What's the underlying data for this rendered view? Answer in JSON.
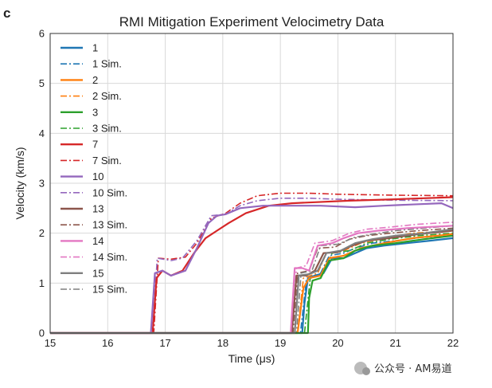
{
  "panel_label": "c",
  "watermark": "公众号 · AM易道",
  "colors": {
    "1": "#1f77b4",
    "2": "#ff7f0e",
    "3": "#2ca02c",
    "7": "#d62728",
    "10": "#9467bd",
    "13": "#8c564b",
    "14": "#e377c2",
    "15": "#7f7f7f",
    "grid": "#d9d9d9",
    "axis": "#333333"
  },
  "chart_data": {
    "type": "line",
    "title": "RMI Mitigation Experiment Velocimetry Data",
    "xlabel": "Time (μs)",
    "ylabel": "Velocity (km/s)",
    "xlim": [
      15,
      22
    ],
    "ylim": [
      0,
      6
    ],
    "xticks": [
      "15",
      "16",
      "17",
      "18",
      "19",
      "20",
      "21",
      "22"
    ],
    "yticks": [
      "0",
      "1",
      "2",
      "3",
      "4",
      "5",
      "6"
    ],
    "grid": true,
    "legend_position": "upper-left",
    "series": [
      {
        "name": "1",
        "key": "1",
        "style": "solid",
        "points": [
          [
            15,
            0
          ],
          [
            19.3,
            0
          ],
          [
            19.38,
            0
          ],
          [
            19.42,
            0.6
          ],
          [
            19.48,
            1.1
          ],
          [
            19.6,
            1.15
          ],
          [
            19.75,
            1.2
          ],
          [
            19.9,
            1.5
          ],
          [
            20.1,
            1.5
          ],
          [
            20.3,
            1.6
          ],
          [
            20.5,
            1.7
          ],
          [
            20.8,
            1.75
          ],
          [
            21.2,
            1.8
          ],
          [
            21.6,
            1.85
          ],
          [
            22,
            1.9
          ]
        ]
      },
      {
        "name": "1 Sim.",
        "key": "1",
        "style": "dashdot",
        "points": [
          [
            15,
            0
          ],
          [
            19.35,
            0
          ],
          [
            19.45,
            1.05
          ],
          [
            19.7,
            1.2
          ],
          [
            19.85,
            1.55
          ],
          [
            20.1,
            1.6
          ],
          [
            20.3,
            1.7
          ],
          [
            20.6,
            1.8
          ],
          [
            21,
            1.85
          ],
          [
            21.5,
            1.92
          ],
          [
            22,
            1.95
          ]
        ]
      },
      {
        "name": "2",
        "key": "2",
        "style": "solid",
        "points": [
          [
            15,
            0
          ],
          [
            19.15,
            0
          ],
          [
            19.3,
            0
          ],
          [
            19.4,
            0.9
          ],
          [
            19.5,
            1.1
          ],
          [
            19.7,
            1.15
          ],
          [
            19.85,
            1.5
          ],
          [
            20.1,
            1.55
          ],
          [
            20.4,
            1.7
          ],
          [
            20.8,
            1.8
          ],
          [
            21.3,
            1.9
          ],
          [
            22,
            1.98
          ]
        ]
      },
      {
        "name": "2 Sim.",
        "key": "2",
        "style": "dashdot",
        "points": [
          [
            15,
            0
          ],
          [
            19.3,
            0
          ],
          [
            19.4,
            1.1
          ],
          [
            19.65,
            1.2
          ],
          [
            19.8,
            1.6
          ],
          [
            20.1,
            1.65
          ],
          [
            20.4,
            1.8
          ],
          [
            20.8,
            1.9
          ],
          [
            21.3,
            2.0
          ],
          [
            22,
            2.05
          ]
        ]
      },
      {
        "name": "3",
        "key": "3",
        "style": "solid",
        "points": [
          [
            15,
            0
          ],
          [
            19.4,
            0
          ],
          [
            19.48,
            0
          ],
          [
            19.5,
            0.7
          ],
          [
            19.56,
            1.05
          ],
          [
            19.7,
            1.1
          ],
          [
            19.85,
            1.45
          ],
          [
            20.1,
            1.5
          ],
          [
            20.3,
            1.65
          ],
          [
            20.6,
            1.75
          ],
          [
            21,
            1.8
          ],
          [
            21.5,
            1.88
          ],
          [
            22,
            1.95
          ]
        ]
      },
      {
        "name": "3 Sim.",
        "key": "3",
        "style": "dashdot",
        "points": [
          [
            15,
            0
          ],
          [
            19.42,
            0
          ],
          [
            19.52,
            1.1
          ],
          [
            19.75,
            1.2
          ],
          [
            19.9,
            1.6
          ],
          [
            20.2,
            1.65
          ],
          [
            20.5,
            1.8
          ],
          [
            20.9,
            1.88
          ],
          [
            21.4,
            1.95
          ],
          [
            22,
            2.0
          ]
        ]
      },
      {
        "name": "7",
        "key": "7",
        "style": "solid",
        "points": [
          [
            15,
            0
          ],
          [
            16.78,
            0
          ],
          [
            16.85,
            1.1
          ],
          [
            16.95,
            1.25
          ],
          [
            17.1,
            1.15
          ],
          [
            17.3,
            1.25
          ],
          [
            17.5,
            1.6
          ],
          [
            17.7,
            1.9
          ],
          [
            17.9,
            2.05
          ],
          [
            18.1,
            2.2
          ],
          [
            18.4,
            2.4
          ],
          [
            18.8,
            2.55
          ],
          [
            19.2,
            2.6
          ],
          [
            19.6,
            2.62
          ],
          [
            20.2,
            2.65
          ],
          [
            21,
            2.68
          ],
          [
            22,
            2.72
          ]
        ]
      },
      {
        "name": "7 Sim.",
        "key": "7",
        "style": "dashdot",
        "points": [
          [
            15,
            0
          ],
          [
            16.8,
            0
          ],
          [
            16.88,
            1.5
          ],
          [
            17.1,
            1.48
          ],
          [
            17.35,
            1.52
          ],
          [
            17.55,
            1.8
          ],
          [
            17.8,
            2.3
          ],
          [
            18.05,
            2.4
          ],
          [
            18.3,
            2.6
          ],
          [
            18.6,
            2.75
          ],
          [
            19,
            2.8
          ],
          [
            19.5,
            2.8
          ],
          [
            20,
            2.78
          ],
          [
            21,
            2.76
          ],
          [
            22,
            2.75
          ]
        ]
      },
      {
        "name": "10",
        "key": "10",
        "style": "solid",
        "points": [
          [
            15,
            0
          ],
          [
            16.75,
            0
          ],
          [
            16.82,
            1.2
          ],
          [
            16.95,
            1.25
          ],
          [
            17.1,
            1.15
          ],
          [
            17.35,
            1.25
          ],
          [
            17.55,
            1.7
          ],
          [
            17.75,
            2.2
          ],
          [
            17.9,
            2.35
          ],
          [
            18.05,
            2.38
          ],
          [
            18.3,
            2.5
          ],
          [
            18.7,
            2.55
          ],
          [
            19.2,
            2.55
          ],
          [
            19.7,
            2.55
          ],
          [
            20.3,
            2.52
          ],
          [
            20.8,
            2.55
          ],
          [
            21.4,
            2.58
          ],
          [
            21.8,
            2.6
          ],
          [
            22,
            2.5
          ]
        ]
      },
      {
        "name": "10 Sim.",
        "key": "10",
        "style": "dashdot",
        "points": [
          [
            15,
            0
          ],
          [
            16.78,
            0
          ],
          [
            16.86,
            1.5
          ],
          [
            17.1,
            1.45
          ],
          [
            17.3,
            1.5
          ],
          [
            17.55,
            1.85
          ],
          [
            17.8,
            2.35
          ],
          [
            18.05,
            2.38
          ],
          [
            18.3,
            2.55
          ],
          [
            18.6,
            2.65
          ],
          [
            19,
            2.7
          ],
          [
            19.5,
            2.7
          ],
          [
            20,
            2.68
          ],
          [
            21,
            2.66
          ],
          [
            22,
            2.65
          ]
        ]
      },
      {
        "name": "13",
        "key": "13",
        "style": "solid",
        "points": [
          [
            15,
            0
          ],
          [
            19.2,
            0
          ],
          [
            19.28,
            1.15
          ],
          [
            19.45,
            1.15
          ],
          [
            19.6,
            1.25
          ],
          [
            19.75,
            1.6
          ],
          [
            20,
            1.62
          ],
          [
            20.25,
            1.75
          ],
          [
            20.5,
            1.85
          ],
          [
            20.9,
            1.9
          ],
          [
            21.4,
            1.98
          ],
          [
            22,
            2.05
          ]
        ]
      },
      {
        "name": "13 Sim.",
        "key": "13",
        "style": "dashdot",
        "points": [
          [
            15,
            0
          ],
          [
            19.22,
            0
          ],
          [
            19.3,
            1.2
          ],
          [
            19.5,
            1.25
          ],
          [
            19.65,
            1.7
          ],
          [
            19.95,
            1.72
          ],
          [
            20.2,
            1.88
          ],
          [
            20.5,
            1.95
          ],
          [
            20.9,
            2.0
          ],
          [
            21.4,
            2.05
          ],
          [
            22,
            2.1
          ]
        ]
      },
      {
        "name": "14",
        "key": "14",
        "style": "solid",
        "points": [
          [
            15,
            0
          ],
          [
            19.18,
            0
          ],
          [
            19.25,
            1.3
          ],
          [
            19.38,
            1.3
          ],
          [
            19.5,
            1.25
          ],
          [
            19.65,
            1.75
          ],
          [
            19.9,
            1.8
          ],
          [
            20.1,
            1.9
          ],
          [
            20.35,
            2.0
          ],
          [
            20.7,
            2.05
          ],
          [
            21.2,
            2.1
          ],
          [
            22,
            2.15
          ]
        ]
      },
      {
        "name": "14 Sim.",
        "key": "14",
        "style": "dashdot",
        "points": [
          [
            15,
            0
          ],
          [
            19.2,
            0
          ],
          [
            19.28,
            1.3
          ],
          [
            19.45,
            1.35
          ],
          [
            19.6,
            1.8
          ],
          [
            19.9,
            1.85
          ],
          [
            20.2,
            2.0
          ],
          [
            20.5,
            2.08
          ],
          [
            20.9,
            2.12
          ],
          [
            21.4,
            2.18
          ],
          [
            22,
            2.22
          ]
        ]
      },
      {
        "name": "15",
        "key": "15",
        "style": "solid",
        "points": [
          [
            15,
            0
          ],
          [
            19.25,
            0
          ],
          [
            19.32,
            1.15
          ],
          [
            19.5,
            1.18
          ],
          [
            19.65,
            1.25
          ],
          [
            19.8,
            1.6
          ],
          [
            20.05,
            1.65
          ],
          [
            20.3,
            1.8
          ],
          [
            20.6,
            1.88
          ],
          [
            21,
            1.95
          ],
          [
            21.5,
            2.0
          ],
          [
            22,
            2.08
          ]
        ]
      },
      {
        "name": "15 Sim.",
        "key": "15",
        "style": "dashdot",
        "points": [
          [
            15,
            0
          ],
          [
            19.28,
            0
          ],
          [
            19.36,
            1.2
          ],
          [
            19.55,
            1.25
          ],
          [
            19.7,
            1.75
          ],
          [
            20,
            1.78
          ],
          [
            20.3,
            1.92
          ],
          [
            20.6,
            1.98
          ],
          [
            21,
            2.05
          ],
          [
            21.5,
            2.1
          ],
          [
            22,
            2.15
          ]
        ]
      }
    ]
  }
}
